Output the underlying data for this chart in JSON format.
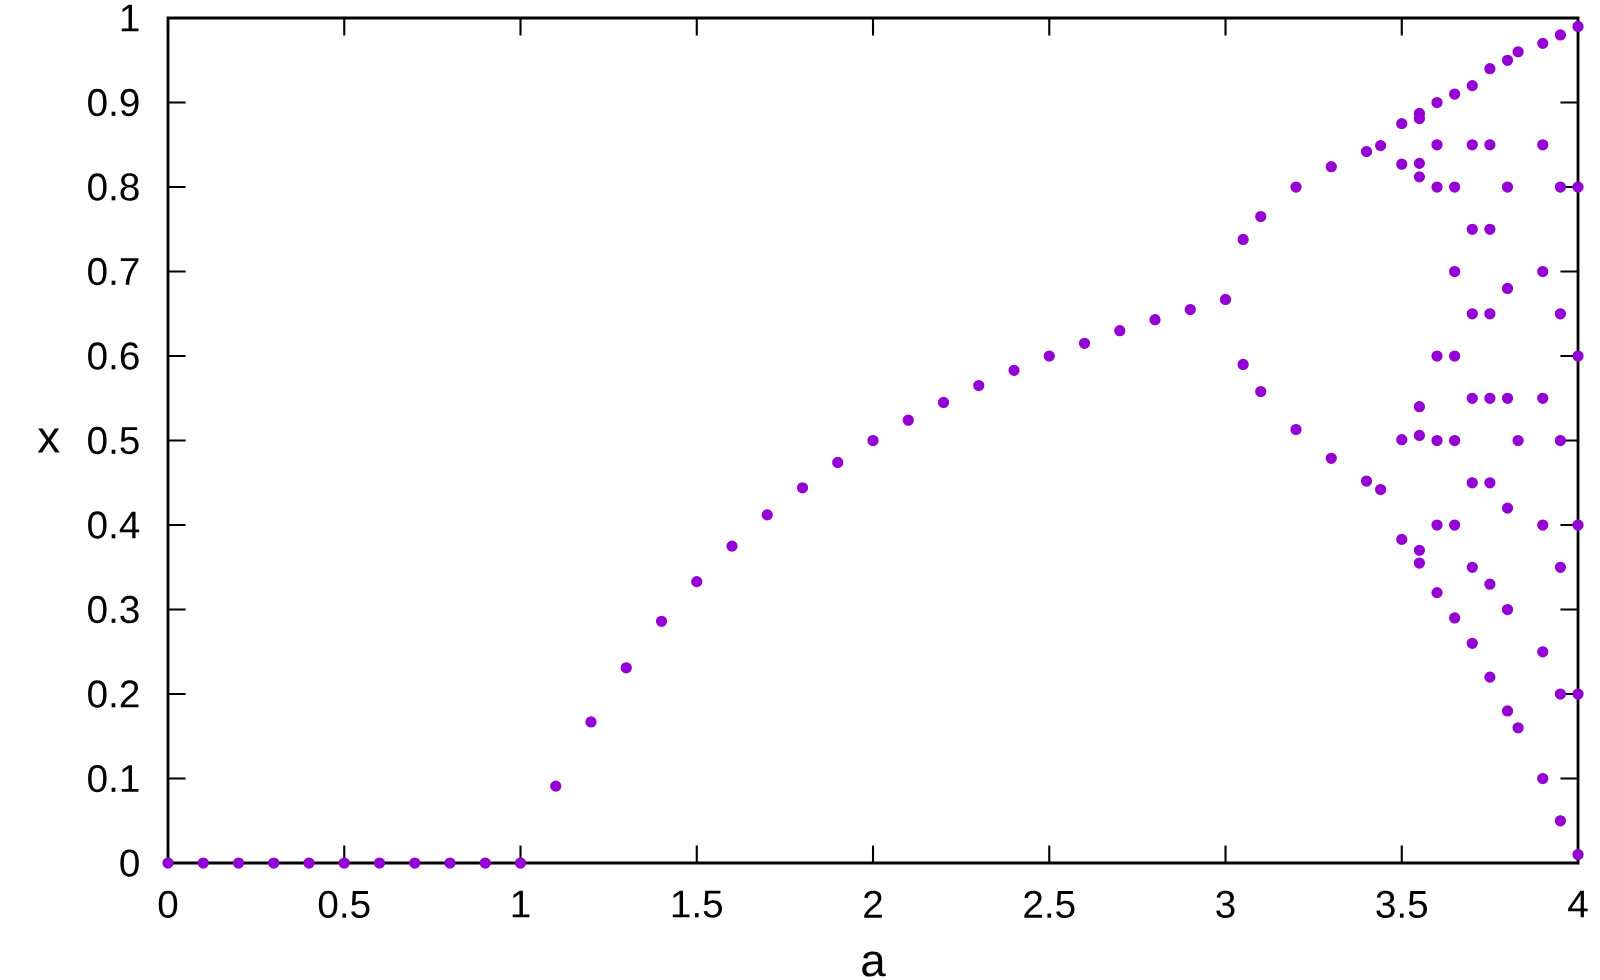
{
  "chart_data": {
    "type": "scatter",
    "xlabel": "a",
    "ylabel": "x",
    "xlim": [
      0,
      4
    ],
    "ylim": [
      0,
      1
    ],
    "xticks": [
      0,
      0.5,
      1,
      1.5,
      2,
      2.5,
      3,
      3.5,
      4
    ],
    "yticks": [
      0,
      0.1,
      0.2,
      0.3,
      0.4,
      0.5,
      0.6,
      0.7,
      0.8,
      0.9,
      1
    ],
    "marker": "circle",
    "series": [
      {
        "color": "#9400d3",
        "x": [
          0,
          0.1,
          0.2,
          0.3,
          0.4,
          0.5,
          0.6,
          0.7,
          0.8,
          0.9,
          1,
          1.1,
          1.2,
          1.3,
          1.4,
          1.5,
          1.6,
          1.7,
          1.8,
          1.9,
          2,
          2.1,
          2.2,
          2.3,
          2.4,
          2.5,
          2.6,
          2.7,
          2.8,
          2.9,
          3,
          3.05,
          3.05,
          3.1,
          3.1,
          3.2,
          3.2,
          3.3,
          3.3,
          3.4,
          3.4,
          3.44,
          3.44,
          3.5,
          3.5,
          3.5,
          3.5,
          3.55,
          3.55,
          3.55,
          3.55,
          3.55,
          3.55,
          3.55,
          3.55,
          3.6,
          3.6,
          3.6,
          3.6,
          3.6,
          3.6,
          3.6,
          3.65,
          3.65,
          3.65,
          3.65,
          3.65,
          3.65,
          3.65,
          3.7,
          3.7,
          3.7,
          3.7,
          3.7,
          3.7,
          3.7,
          3.7,
          3.75,
          3.75,
          3.75,
          3.75,
          3.75,
          3.75,
          3.75,
          3.75,
          3.8,
          3.8,
          3.8,
          3.8,
          3.8,
          3.8,
          3.8,
          3.83,
          3.83,
          3.83,
          3.9,
          3.9,
          3.9,
          3.9,
          3.9,
          3.9,
          3.9,
          3.95,
          3.95,
          3.95,
          3.95,
          3.95,
          3.95,
          3.95,
          4,
          4,
          4,
          4,
          4,
          4
        ],
        "values": [
          0,
          0,
          0,
          0,
          0,
          0,
          0,
          0,
          0,
          0,
          0,
          0.091,
          0.167,
          0.231,
          0.286,
          0.333,
          0.375,
          0.412,
          0.444,
          0.474,
          0.5,
          0.524,
          0.545,
          0.565,
          0.583,
          0.6,
          0.615,
          0.63,
          0.643,
          0.655,
          0.667,
          0.738,
          0.59,
          0.765,
          0.558,
          0.8,
          0.513,
          0.824,
          0.479,
          0.842,
          0.452,
          0.849,
          0.442,
          0.875,
          0.383,
          0.827,
          0.501,
          0.887,
          0.355,
          0.812,
          0.54,
          0.881,
          0.37,
          0.828,
          0.506,
          0.32,
          0.4,
          0.5,
          0.6,
          0.8,
          0.85,
          0.9,
          0.29,
          0.4,
          0.5,
          0.6,
          0.7,
          0.8,
          0.91,
          0.26,
          0.35,
          0.45,
          0.55,
          0.65,
          0.75,
          0.85,
          0.92,
          0.22,
          0.33,
          0.45,
          0.55,
          0.65,
          0.75,
          0.85,
          0.94,
          0.18,
          0.3,
          0.42,
          0.55,
          0.68,
          0.8,
          0.95,
          0.16,
          0.5,
          0.96,
          0.1,
          0.25,
          0.4,
          0.55,
          0.7,
          0.85,
          0.97,
          0.05,
          0.2,
          0.35,
          0.5,
          0.65,
          0.8,
          0.98,
          0.01,
          0.2,
          0.4,
          0.6,
          0.8,
          0.99
        ]
      }
    ]
  }
}
